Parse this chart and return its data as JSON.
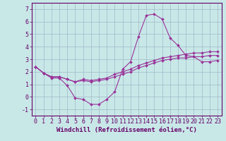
{
  "xlabel": "Windchill (Refroidissement éolien,°C)",
  "background_color": "#c8e8e8",
  "grid_color": "#a0b8c8",
  "line_color": "#993399",
  "x_hours": [
    0,
    1,
    2,
    3,
    4,
    5,
    6,
    7,
    8,
    9,
    10,
    11,
    12,
    13,
    14,
    15,
    16,
    17,
    18,
    19,
    20,
    21,
    22,
    23
  ],
  "series1_y": [
    2.4,
    1.9,
    1.5,
    1.5,
    0.9,
    -0.1,
    -0.2,
    -0.6,
    -0.6,
    -0.2,
    0.4,
    2.2,
    2.8,
    4.8,
    6.5,
    6.6,
    6.2,
    4.7,
    4.1,
    3.3,
    3.2,
    2.8,
    2.8,
    2.9
  ],
  "series2_y": [
    2.4,
    1.9,
    1.6,
    1.6,
    1.4,
    1.2,
    1.4,
    1.3,
    1.4,
    1.5,
    1.8,
    2.0,
    2.2,
    2.5,
    2.7,
    2.9,
    3.1,
    3.2,
    3.3,
    3.4,
    3.5,
    3.5,
    3.6,
    3.6
  ],
  "series3_y": [
    2.4,
    1.9,
    1.6,
    1.6,
    1.4,
    1.2,
    1.3,
    1.2,
    1.3,
    1.4,
    1.6,
    1.8,
    2.0,
    2.3,
    2.5,
    2.7,
    2.9,
    3.0,
    3.1,
    3.1,
    3.2,
    3.2,
    3.3,
    3.3
  ],
  "ylim": [
    -1.5,
    7.5
  ],
  "xlim": [
    -0.5,
    23.5
  ],
  "yticks": [
    -1,
    0,
    1,
    2,
    3,
    4,
    5,
    6,
    7
  ],
  "xticks": [
    0,
    1,
    2,
    3,
    4,
    5,
    6,
    7,
    8,
    9,
    10,
    11,
    12,
    13,
    14,
    15,
    16,
    17,
    18,
    19,
    20,
    21,
    22,
    23
  ],
  "font_size": 6.0,
  "marker": "D",
  "marker_size": 2.0,
  "line_width": 0.8
}
